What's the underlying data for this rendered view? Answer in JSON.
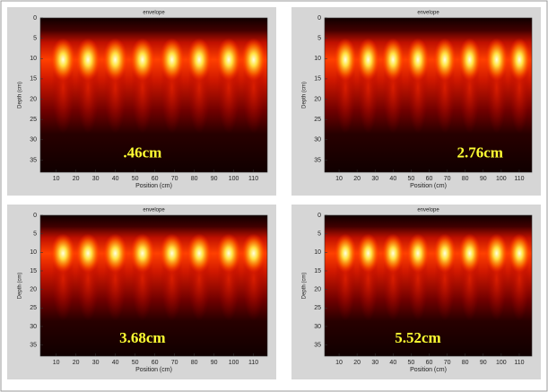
{
  "chart_data": [
    {
      "type": "image",
      "title": "envelope",
      "xlabel": "Position (cm)",
      "ylabel": "Depth (cm)",
      "annotation": ".46cm",
      "xlim": [
        2,
        117
      ],
      "ylim": [
        0,
        38
      ],
      "xticks": [
        10,
        20,
        30,
        40,
        50,
        60,
        70,
        80,
        90,
        100,
        110
      ],
      "yticks": [
        0,
        5,
        10,
        15,
        20,
        25,
        30,
        35
      ]
    },
    {
      "type": "image",
      "title": "envelope",
      "xlabel": "Position (cm)",
      "ylabel": "Depth (cm)",
      "annotation": "2.76cm",
      "xlim": [
        2,
        117
      ],
      "ylim": [
        0,
        38
      ],
      "xticks": [
        10,
        20,
        30,
        40,
        50,
        60,
        70,
        80,
        90,
        100,
        110
      ],
      "yticks": [
        0,
        5,
        10,
        15,
        20,
        25,
        30,
        35
      ]
    },
    {
      "type": "image",
      "title": "envelope",
      "xlabel": "Position (cm)",
      "ylabel": "Depth (cm)",
      "annotation": "3.68cm",
      "xlim": [
        2,
        117
      ],
      "ylim": [
        0,
        38
      ],
      "xticks": [
        10,
        20,
        30,
        40,
        50,
        60,
        70,
        80,
        90,
        100,
        110
      ],
      "yticks": [
        0,
        5,
        10,
        15,
        20,
        25,
        30,
        35
      ]
    },
    {
      "type": "image",
      "title": "envelope",
      "xlabel": "Position (cm)",
      "ylabel": "Depth (cm)",
      "annotation": "5.52cm",
      "xlim": [
        2,
        117
      ],
      "ylim": [
        0,
        38
      ],
      "xticks": [
        10,
        20,
        30,
        40,
        50,
        60,
        70,
        80,
        90,
        100,
        110
      ],
      "yticks": [
        0,
        5,
        10,
        15,
        20,
        25,
        30,
        35
      ]
    }
  ]
}
